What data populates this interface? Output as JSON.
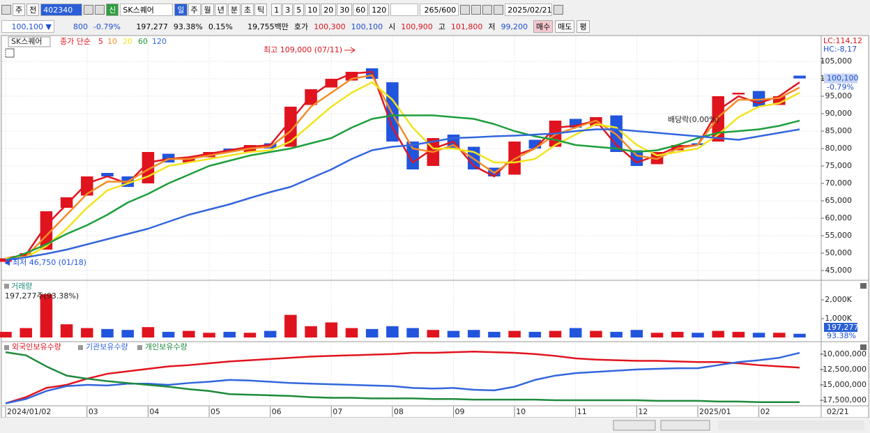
{
  "toolbar": {
    "view": "주",
    "prev": "전",
    "code": "402340",
    "badge": "신",
    "name": "SK스퀘어",
    "periods": [
      "일",
      "주",
      "월",
      "년",
      "분",
      "초",
      "틱"
    ],
    "intervals": [
      "1",
      "3",
      "5",
      "10",
      "20",
      "30",
      "60",
      "120"
    ],
    "count": "265/600",
    "date": "2025/02/21"
  },
  "quote": {
    "price": "100,100",
    "direction": "▼",
    "change": "800",
    "change_pct": "-0.79%",
    "volume": "197,277",
    "volume_ratio": "93.38%",
    "turnover": "0.15%",
    "amount": "19,755백만",
    "ask_label": "호가",
    "ask": "100,300",
    "bid": "100,100",
    "open_label": "시",
    "open": "100,900",
    "high_label": "고",
    "high": "101,800",
    "low_label": "저",
    "low": "99,200",
    "buttons": [
      "매수",
      "매도",
      "평"
    ]
  },
  "chart_data": [
    {
      "type": "candlestick",
      "legend_name": "SK스퀘어",
      "legend_label": "종가 단순",
      "up_color": "#e0141e",
      "down_color": "#2255dd",
      "categories": [
        "2024/01/02",
        null,
        null,
        null,
        "03",
        null,
        null,
        "04",
        null,
        null,
        "05",
        null,
        null,
        "06",
        null,
        null,
        "07",
        null,
        null,
        "08",
        null,
        null,
        "09",
        null,
        null,
        "10",
        null,
        null,
        "11",
        null,
        null,
        "12",
        null,
        null,
        "2025/01",
        null,
        null,
        "02",
        null,
        null
      ],
      "last_date": "02/21",
      "open": [
        47500,
        48800,
        51000,
        63000,
        66500,
        73000,
        72000,
        70000,
        78500,
        76000,
        77500,
        80000,
        79000,
        81500,
        80500,
        92500,
        97500,
        99500,
        103000,
        99000,
        82000,
        75000,
        84000,
        80500,
        74500,
        72500,
        82500,
        80500,
        88500,
        86500,
        89500,
        79500,
        75500,
        79500,
        81500,
        82000,
        95500,
        96500,
        92500,
        100900
      ],
      "close": [
        48500,
        50000,
        62000,
        66000,
        72000,
        72000,
        69000,
        79000,
        76000,
        77000,
        79000,
        79000,
        81000,
        80000,
        92000,
        97000,
        100000,
        102000,
        100000,
        82000,
        74000,
        83000,
        80000,
        74000,
        72000,
        82000,
        80000,
        88000,
        86000,
        89000,
        79000,
        75000,
        79000,
        81000,
        81000,
        95000,
        96000,
        92000,
        95000,
        100100
      ],
      "series": [
        {
          "name": "5",
          "color": "#e0141e",
          "values": [
            48500,
            49500,
            58000,
            64000,
            70000,
            72000,
            70000,
            76000,
            77000,
            77500,
            78500,
            79500,
            80500,
            81000,
            88000,
            95000,
            99000,
            101500,
            102000,
            86000,
            76000,
            80000,
            82000,
            75000,
            72000,
            78000,
            80000,
            86000,
            86500,
            88000,
            81000,
            76000,
            78000,
            80500,
            81000,
            91000,
            95000,
            93000,
            95000,
            99000
          ]
        },
        {
          "name": "10",
          "color": "#f28c28",
          "values": [
            48500,
            49000,
            55000,
            61000,
            67000,
            70500,
            70500,
            74000,
            77000,
            77000,
            78000,
            79000,
            80000,
            80500,
            85000,
            92000,
            96000,
            100000,
            101000,
            90000,
            80000,
            79000,
            81000,
            77000,
            73000,
            77000,
            80000,
            84000,
            86000,
            88000,
            84000,
            78000,
            77000,
            80000,
            81000,
            89000,
            94000,
            94000,
            94500,
            97500
          ]
        },
        {
          "name": "20",
          "color": "#f2e41c",
          "values": [
            48500,
            48800,
            52000,
            57000,
            63000,
            68000,
            70000,
            72000,
            75000,
            76000,
            77000,
            78000,
            79000,
            79500,
            82000,
            87000,
            92000,
            96000,
            99000,
            94000,
            86000,
            80000,
            80000,
            79000,
            76000,
            76000,
            77000,
            81000,
            84000,
            87000,
            86000,
            81000,
            78000,
            79000,
            80000,
            84000,
            89000,
            92000,
            93000,
            96000
          ]
        },
        {
          "name": "60",
          "color": "#1e9e3c",
          "values": [
            48000,
            50000,
            52500,
            55500,
            58000,
            61000,
            64500,
            67000,
            70000,
            72500,
            75000,
            76500,
            78000,
            79000,
            80000,
            81500,
            83000,
            86000,
            88500,
            89500,
            89500,
            89500,
            89000,
            88500,
            87000,
            85000,
            83500,
            82500,
            81000,
            80500,
            80000,
            79000,
            79500,
            81000,
            83000,
            84500,
            85000,
            85500,
            86500,
            88000
          ]
        },
        {
          "name": "120",
          "color": "#3366dd",
          "values": [
            48000,
            48800,
            49800,
            51000,
            52500,
            54000,
            55500,
            57000,
            59000,
            61000,
            62500,
            64000,
            65800,
            67500,
            69000,
            71500,
            74000,
            77000,
            79500,
            80500,
            81000,
            82000,
            83000,
            83200,
            83500,
            83700,
            84000,
            84300,
            85000,
            85500,
            85500,
            85000,
            84500,
            84000,
            83500,
            83000,
            82500,
            83500,
            84500,
            85500
          ]
        }
      ],
      "ylim": [
        42200,
        112200
      ],
      "yticks": [
        {
          "value": 45000,
          "label": "45,000"
        },
        {
          "value": 50000,
          "label": "50,000"
        },
        {
          "value": 55000,
          "label": "55,000"
        },
        {
          "value": 60000,
          "label": "60,000"
        },
        {
          "value": 65000,
          "label": "65,000"
        },
        {
          "value": 70000,
          "label": "70,000"
        },
        {
          "value": 75000,
          "label": "75,000"
        },
        {
          "value": 80000,
          "label": "80,000"
        },
        {
          "value": 85000,
          "label": "85,000"
        },
        {
          "value": 90000,
          "label": "90,000"
        },
        {
          "value": 95000,
          "label": "95,000"
        },
        {
          "value": 100000,
          "label": "100,000"
        },
        {
          "value": 105000,
          "label": "105,000"
        }
      ],
      "grid": true,
      "high_note": "최고 109,000 (07/11)",
      "low_note": "최저 46,750 (01/18)",
      "dividend_note": "배당락(0.00%)",
      "last_label": "100,100",
      "last_change": "-0.79%",
      "lc": "LC:114,12",
      "hc": "HC:-8,17"
    },
    {
      "type": "bar",
      "title": "거래량",
      "subtitle": "197,277주(93.38%)",
      "values": [
        300,
        500,
        2300,
        700,
        500,
        450,
        400,
        550,
        300,
        350,
        250,
        300,
        250,
        350,
        1200,
        600,
        800,
        500,
        450,
        600,
        500,
        400,
        350,
        400,
        300,
        350,
        300,
        350,
        500,
        350,
        300,
        400,
        250,
        300,
        250,
        350,
        300,
        250,
        250,
        197.277
      ],
      "ylim": [
        0,
        2518
      ],
      "yticks": [
        {
          "value": 1000,
          "label": "1,000K"
        },
        {
          "value": 2000,
          "label": "2,000K"
        }
      ],
      "last_label": "197,277",
      "last_pct": "93.38%"
    },
    {
      "type": "line",
      "series": [
        {
          "name": "외국인보유수량",
          "color": "#e0141e",
          "values": [
            -18000000,
            -17000000,
            -15500000,
            -15000000,
            -14000000,
            -13200000,
            -12800000,
            -12400000,
            -12000000,
            -11800000,
            -11500000,
            -11200000,
            -11000000,
            -10800000,
            -10600000,
            -10400000,
            -10300000,
            -10200000,
            -10100000,
            -10000000,
            -9800000,
            -9800000,
            -9700000,
            -9600000,
            -9700000,
            -9800000,
            -10000000,
            -10300000,
            -10700000,
            -10900000,
            -11000000,
            -11100000,
            -11100000,
            -11200000,
            -11300000,
            -11300000,
            -11500000,
            -11800000,
            -12000000,
            -12200000
          ]
        },
        {
          "name": "기관보유수량",
          "color": "#3366dd",
          "values": [
            -18000000,
            -17300000,
            -16000000,
            -15200000,
            -15000000,
            -15100000,
            -14800000,
            -14800000,
            -15000000,
            -14700000,
            -14500000,
            -14200000,
            -14300000,
            -14500000,
            -14700000,
            -14800000,
            -14900000,
            -15000000,
            -15100000,
            -15200000,
            -15500000,
            -15600000,
            -15500000,
            -15800000,
            -15900000,
            -15300000,
            -14200000,
            -13500000,
            -13100000,
            -12900000,
            -12700000,
            -12500000,
            -12400000,
            -12300000,
            -12300000,
            -11800000,
            -11300000,
            -11000000,
            -10600000,
            -9800000
          ]
        },
        {
          "name": "개인보유수량",
          "color": "#1e8a3c",
          "values": [
            -9700000,
            -10200000,
            -12000000,
            -13500000,
            -14000000,
            -14400000,
            -14700000,
            -15000000,
            -15300000,
            -15700000,
            -16000000,
            -16500000,
            -16600000,
            -16700000,
            -16800000,
            -17000000,
            -17100000,
            -17100000,
            -17200000,
            -17200000,
            -17200000,
            -17300000,
            -17300000,
            -17400000,
            -17400000,
            -17400000,
            -17400000,
            -17500000,
            -17500000,
            -17500000,
            -17500000,
            -17500000,
            -17600000,
            -17600000,
            -17600000,
            -17700000,
            -17700000,
            -17800000,
            -17800000,
            -17800000
          ]
        }
      ],
      "ylim": [
        -18400000,
        -8100000
      ],
      "yticks": [
        {
          "value": -10000000,
          "label": "-10,000,000"
        },
        {
          "value": -12500000,
          "label": "-12,500,000"
        },
        {
          "value": -15000000,
          "label": "-15,000,000"
        },
        {
          "value": -17500000,
          "label": "-17,500,000"
        }
      ]
    }
  ]
}
